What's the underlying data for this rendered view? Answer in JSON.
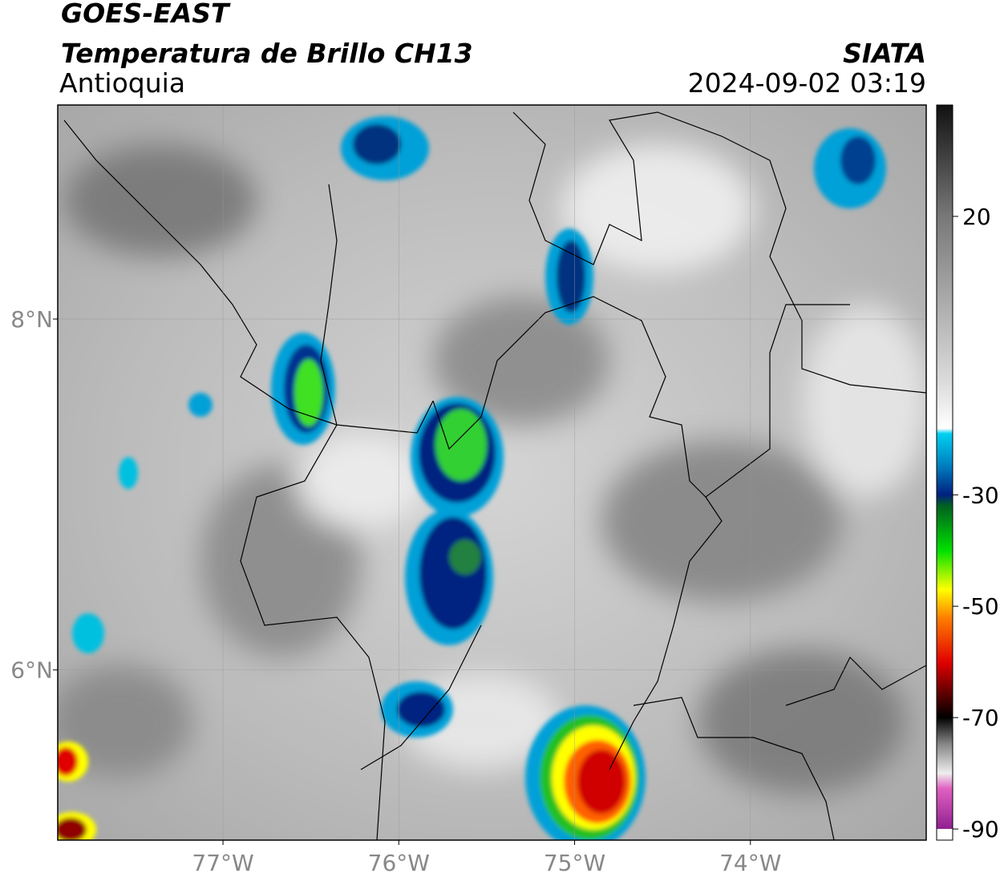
{
  "header": {
    "satellite": "GOES-EAST",
    "product": "Temperatura de Brillo CH13",
    "region": "Antioquia",
    "source": "SIATA",
    "datetime": "2024-09-02 03:19"
  },
  "map": {
    "xlim": [
      -77.94,
      -73.0
    ],
    "ylim": [
      5.03,
      9.22
    ],
    "xticks": [
      {
        "value": -77,
        "label": "77°W"
      },
      {
        "value": -76,
        "label": "76°W"
      },
      {
        "value": -75,
        "label": "75°W"
      },
      {
        "value": -74,
        "label": "74°W"
      }
    ],
    "yticks": [
      {
        "value": 8,
        "label": "8°N"
      },
      {
        "value": 6,
        "label": "6°N"
      }
    ]
  },
  "colorbar": {
    "lim": [
      -92,
      40
    ],
    "ticks": [
      20,
      -30,
      -50,
      -70,
      -90
    ]
  }
}
